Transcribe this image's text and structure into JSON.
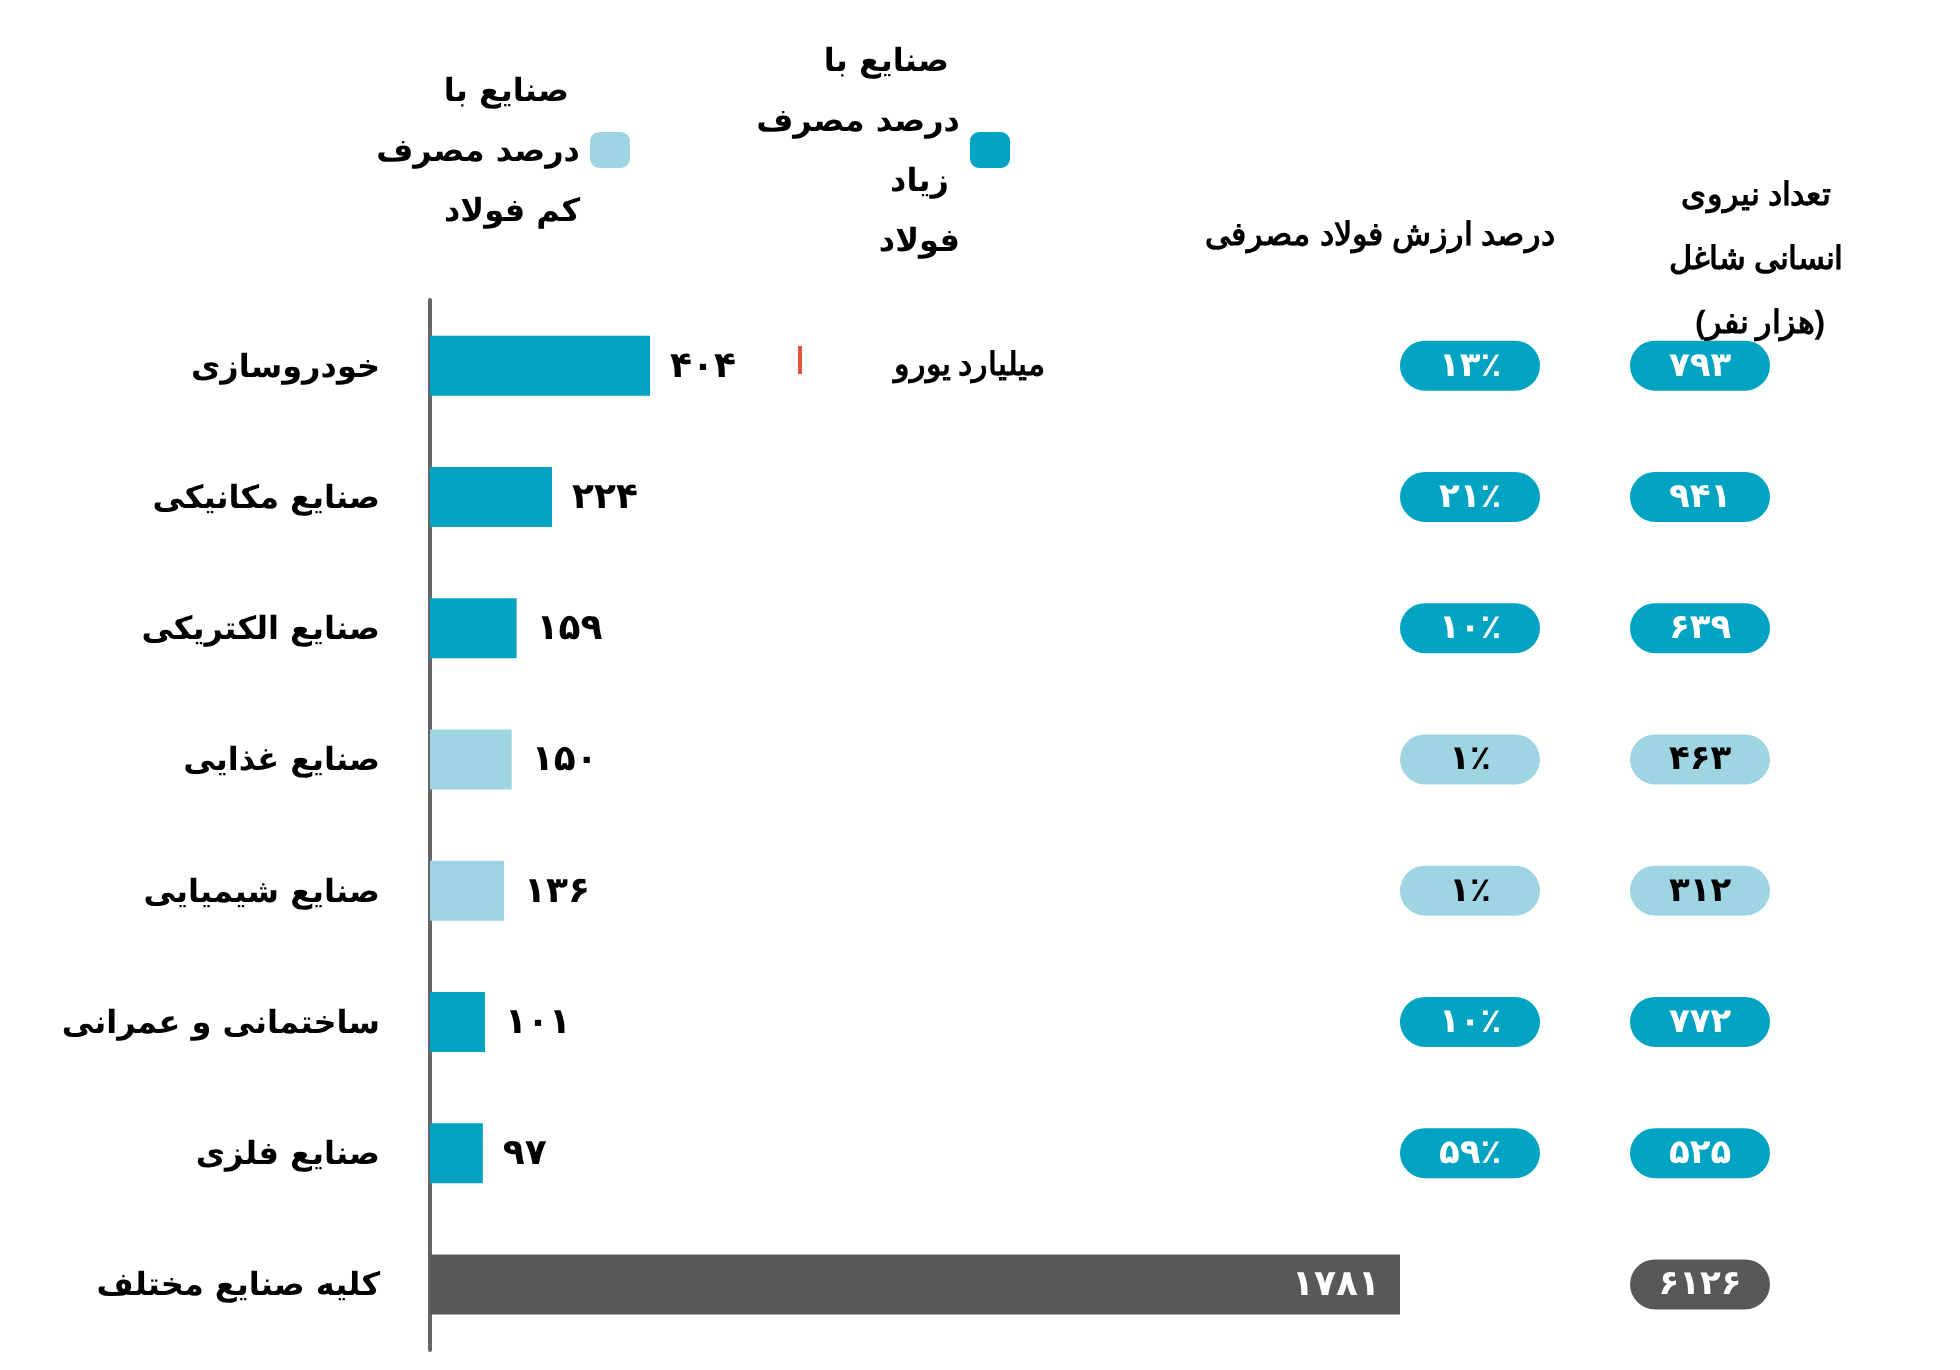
{
  "chart_data": {
    "type": "bar",
    "orientation": "horizontal",
    "legend": "top left",
    "categories": [
      "خودروسازی",
      "صنایع مکانیکی",
      "صنایع الکتریکی",
      "صنایع غذایی",
      "صنایع شیمیایی",
      "ساختمانی و عمرانی",
      "صنایع فلزی",
      "کلیه صنایع مختلف"
    ],
    "series": [
      {
        "name": "صنایع با درصد مصرف کم فولاد",
        "color": "#9fd5e2",
        "values": [
          null,
          null,
          null,
          150,
          136,
          null,
          null,
          null
        ],
        "value_labels": [
          null,
          null,
          null,
          "۱۵۰",
          "۱۳۶",
          null,
          null,
          null
        ]
      },
      {
        "name": "صنایع با درصد مصرف زیاد فولاد",
        "color": "#00a3c2",
        "values": [
          404,
          224,
          159,
          null,
          null,
          101,
          97,
          null
        ],
        "value_labels": [
          "۴۰۴",
          "۲۲۴",
          "۱۵۹",
          null,
          null,
          "۱۰۱",
          "۹۷",
          null
        ]
      },
      {
        "color": "#58585a",
        "values": [
          null,
          null,
          null,
          null,
          null,
          null,
          null,
          1781
        ],
        "value_labels": [
          null,
          null,
          null,
          null,
          null,
          null,
          null,
          "۱۷۸۱"
        ]
      }
    ],
    "annotations": [
      "تعداد نیروی انسانی شاغل (هزار نفر)",
      "درصد ارزش فولاد مصرفی",
      "میلیارد یورو",
      "۷۹۳",
      "۱۳٪",
      "۹۴۱",
      "۲۱٪",
      "۶۳۹",
      "۱۰٪",
      "۴۶۳",
      "۱٪",
      "۳۱۲",
      "۱٪",
      "۷۷۲",
      "۱۰٪",
      "۵۲۵",
      "۵۹٪",
      "۶۱۲۶"
    ]
  }
}
